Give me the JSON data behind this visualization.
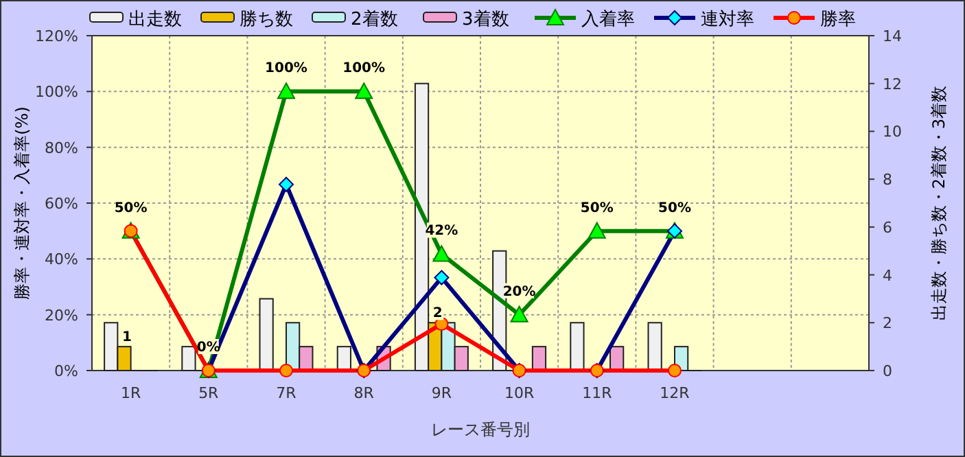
{
  "chart_data": {
    "type": "bar",
    "xlabel": "レース番号別",
    "ylabel": "勝率・連対率・入着率(%)",
    "y2label": "出走数・勝ち数・2着数・3着数",
    "categories": [
      "1R",
      "5R",
      "7R",
      "8R",
      "9R",
      "10R",
      "11R",
      "12R",
      null,
      null
    ],
    "ylim": [
      0,
      120
    ],
    "yticks": [
      {
        "value": 0,
        "label": "0%"
      },
      {
        "value": 20,
        "label": "20%"
      },
      {
        "value": 40,
        "label": "40%"
      },
      {
        "value": 60,
        "label": "60%"
      },
      {
        "value": 80,
        "label": "80%"
      },
      {
        "value": 100,
        "label": "100%"
      },
      {
        "value": 120,
        "label": "120%"
      }
    ],
    "y2lim": [
      0,
      14
    ],
    "y2ticks": [
      0,
      2,
      4,
      6,
      8,
      10,
      12,
      14
    ],
    "grid": true,
    "legend": "top",
    "series": [
      {
        "name": "出走数",
        "type": "bar",
        "axis": "y2",
        "color": "#f0f0f0",
        "values": [
          2,
          1,
          3,
          1,
          12,
          5,
          2,
          2,
          null,
          null
        ]
      },
      {
        "name": "勝ち数",
        "type": "bar",
        "axis": "y2",
        "color": "#f0c000",
        "values": [
          1,
          0,
          0,
          0,
          2,
          0,
          0,
          0,
          null,
          null
        ],
        "value_labels": [
          "1",
          null,
          null,
          null,
          "2",
          null,
          null,
          null,
          null,
          null
        ]
      },
      {
        "name": "2着数",
        "type": "bar",
        "axis": "y2",
        "color": "#c0f0f0",
        "values": [
          0,
          0,
          2,
          0,
          2,
          0,
          0,
          1,
          null,
          null
        ]
      },
      {
        "name": "3着数",
        "type": "bar",
        "axis": "y2",
        "color": "#f0a0d0",
        "values": [
          0,
          0,
          1,
          1,
          1,
          1,
          1,
          0,
          null,
          null
        ]
      },
      {
        "name": "入着率",
        "type": "line",
        "color": "#008000",
        "marker": "triangle",
        "values": [
          50,
          0,
          100,
          100,
          41.7,
          20,
          50,
          50,
          null,
          null
        ],
        "value_labels": [
          "50%",
          "0%",
          "100%",
          "100%",
          "42%",
          "20%",
          "50%",
          "50%",
          null,
          null
        ]
      },
      {
        "name": "連対率",
        "type": "line",
        "color": "#000080",
        "marker": "diamond",
        "values": [
          null,
          0,
          66.7,
          0,
          33.3,
          0,
          0,
          50,
          null,
          null
        ]
      },
      {
        "name": "勝率",
        "type": "line",
        "color": "#ff0000",
        "marker": "circle",
        "values": [
          50,
          0,
          0,
          0,
          16.7,
          0,
          0,
          0,
          null,
          null
        ]
      }
    ]
  }
}
